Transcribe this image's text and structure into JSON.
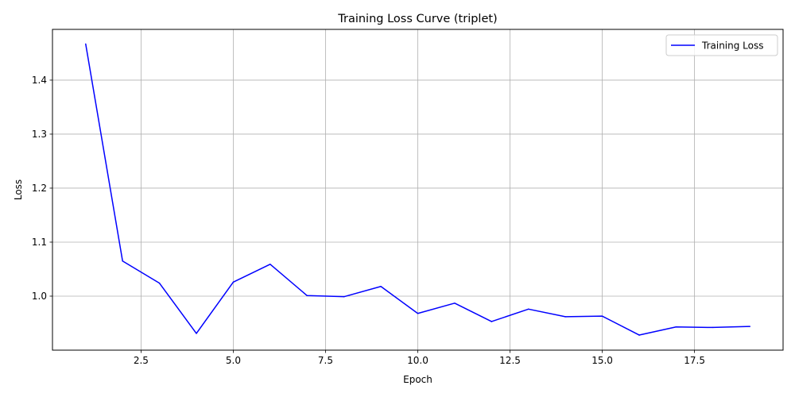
{
  "chart_data": {
    "type": "line",
    "title": "Training Loss Curve (triplet)",
    "xlabel": "Epoch",
    "ylabel": "Loss",
    "xlim": [
      0.1,
      19.9
    ],
    "ylim": [
      0.9,
      1.494
    ],
    "xticks": [
      2.5,
      5.0,
      7.5,
      10.0,
      12.5,
      15.0,
      17.5
    ],
    "xtick_labels": [
      "2.5",
      "5.0",
      "7.5",
      "10.0",
      "12.5",
      "15.0",
      "17.5"
    ],
    "yticks": [
      1.0,
      1.1,
      1.2,
      1.3,
      1.4
    ],
    "ytick_labels": [
      "1.0",
      "1.1",
      "1.2",
      "1.3",
      "1.4"
    ],
    "grid": true,
    "legend_position": "top-right",
    "series": [
      {
        "name": "Training Loss",
        "color": "#0000ff",
        "x": [
          1,
          2,
          3,
          4,
          5,
          6,
          7,
          8,
          9,
          10,
          11,
          12,
          13,
          14,
          15,
          16,
          17,
          18,
          19
        ],
        "y": [
          1.467,
          1.065,
          1.024,
          0.931,
          1.026,
          1.059,
          1.001,
          0.999,
          1.018,
          0.968,
          0.987,
          0.953,
          0.976,
          0.962,
          0.963,
          0.928,
          0.943,
          0.942,
          0.944
        ]
      }
    ]
  }
}
